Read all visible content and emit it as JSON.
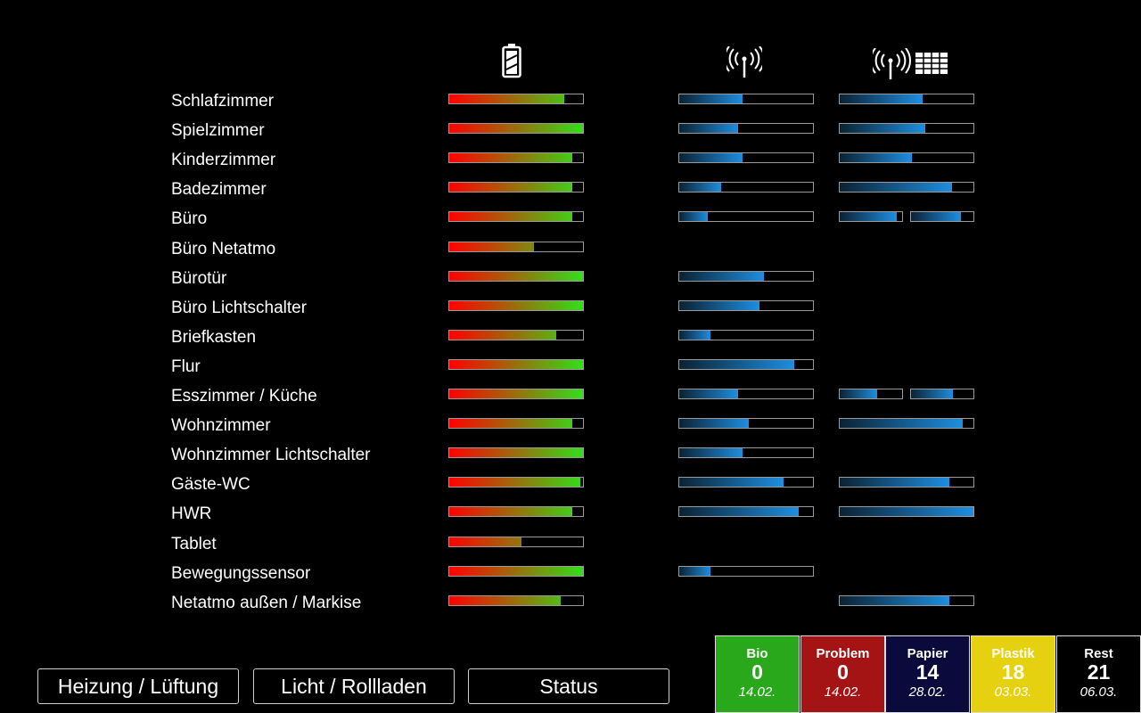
{
  "headers": {
    "battery_icon": "battery-icon",
    "signal_icon": "antenna-icon",
    "signal_repeater_icon": "antenna-grid-icon"
  },
  "devices": [
    {
      "name": "Schlafzimmer",
      "battery": 0.86,
      "signal": 0.47,
      "signal2": [
        0.62
      ]
    },
    {
      "name": "Spielzimmer",
      "battery": 1.0,
      "signal": 0.44,
      "signal2": [
        0.64
      ]
    },
    {
      "name": "Kinderzimmer",
      "battery": 0.92,
      "signal": 0.47,
      "signal2": [
        0.54
      ]
    },
    {
      "name": "Badezimmer",
      "battery": 0.92,
      "signal": 0.31,
      "signal2": [
        0.84
      ]
    },
    {
      "name": "Büro",
      "battery": 0.92,
      "signal": 0.21,
      "signal2": [
        0.91,
        0.8
      ]
    },
    {
      "name": "Büro Netatmo",
      "battery": 0.63,
      "signal": null,
      "signal2": []
    },
    {
      "name": "Bürotür",
      "battery": 1.0,
      "signal": 0.63,
      "signal2": []
    },
    {
      "name": "Büro Lichtschalter",
      "battery": 1.0,
      "signal": 0.6,
      "signal2": []
    },
    {
      "name": "Briefkasten",
      "battery": 0.8,
      "signal": 0.23,
      "signal2": []
    },
    {
      "name": "Flur",
      "battery": 1.0,
      "signal": 0.86,
      "signal2": []
    },
    {
      "name": "Esszimmer / Küche",
      "battery": 1.0,
      "signal": 0.44,
      "signal2": [
        0.6,
        0.67
      ]
    },
    {
      "name": "Wohnzimmer",
      "battery": 0.92,
      "signal": 0.52,
      "signal2": [
        0.92
      ]
    },
    {
      "name": "Wohnzimmer Lichtschalter",
      "battery": 1.0,
      "signal": 0.47,
      "signal2": []
    },
    {
      "name": "Gäste-WC",
      "battery": 0.98,
      "signal": 0.78,
      "signal2": [
        0.82
      ]
    },
    {
      "name": "HWR",
      "battery": 0.92,
      "signal": 0.89,
      "signal2": [
        1.0
      ]
    },
    {
      "name": "Tablet",
      "battery": 0.54,
      "signal": null,
      "signal2": []
    },
    {
      "name": "Bewegungssensor",
      "battery": 1.0,
      "signal": 0.23,
      "signal2": []
    },
    {
      "name": "Netatmo außen / Markise",
      "battery": 0.83,
      "signal": null,
      "signal2": [
        0.82
      ]
    }
  ],
  "nav": {
    "heating": "Heizung / Lüftung",
    "light": "Licht / Rollladen",
    "status": "Status"
  },
  "waste": [
    {
      "name": "Bio",
      "count": "0",
      "date": "14.02.",
      "bg": "#2aa81b",
      "fg": "#ffffff"
    },
    {
      "name": "Problem",
      "count": "0",
      "date": "14.02.",
      "bg": "#a51414",
      "fg": "#ffffff"
    },
    {
      "name": "Papier",
      "count": "14",
      "date": "28.02.",
      "bg": "#0a0a3c",
      "fg": "#ffffff"
    },
    {
      "name": "Plastik",
      "count": "18",
      "date": "03.03.",
      "bg": "#e5d10f",
      "fg": "#ffffff"
    },
    {
      "name": "Rest",
      "count": "21",
      "date": "06.03.",
      "bg": "#000000",
      "fg": "#ffffff"
    }
  ]
}
